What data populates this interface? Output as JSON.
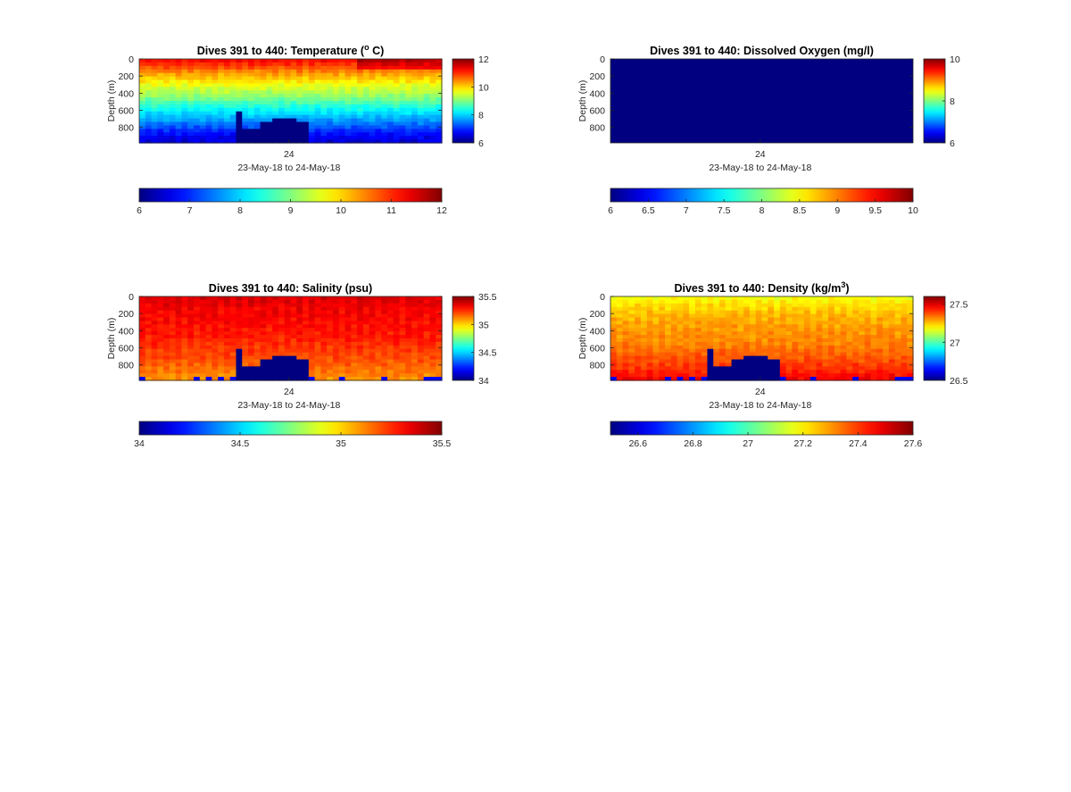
{
  "chart_data": [
    {
      "type": "heatmap",
      "title_prefix": "Dives 391 to 440: Temperature (",
      "title_sup": "o",
      "title_suffix": " C)",
      "ylabel": "Depth (m)",
      "xlabel": "23-May-18 to 24-May-18",
      "x_ticks": [
        "24"
      ],
      "y_ticks": [
        0,
        200,
        400,
        600,
        800
      ],
      "ylim": [
        0,
        980
      ],
      "y_reversed": true,
      "clim": [
        6,
        12
      ],
      "side_colorbar_ticks": [
        6,
        8,
        10,
        12
      ],
      "horizontal_colorbar_ticks": [
        6,
        7,
        8,
        9,
        10,
        11,
        12
      ],
      "colormap": "jet",
      "dives": 50,
      "profile": [
        11.2,
        10.8,
        10.3,
        9.9,
        9.5,
        9.2,
        8.8,
        8.4,
        8.0,
        7.6,
        7.2,
        6.8,
        6.5
      ],
      "surface_warm_fraction": 0.7,
      "missing_fill": 6,
      "bottom_gaps": [
        {
          "dive": 16,
          "top_depth": 600
        },
        {
          "dive": 17,
          "top_depth": 820
        },
        {
          "dive": 18,
          "top_depth": 820
        },
        {
          "dive": 19,
          "top_depth": 800
        },
        {
          "dive": 20,
          "top_depth": 720
        },
        {
          "dive": 21,
          "top_depth": 720
        },
        {
          "dive": 22,
          "top_depth": 680
        },
        {
          "dive": 23,
          "top_depth": 680
        },
        {
          "dive": 24,
          "top_depth": 700
        },
        {
          "dive": 25,
          "top_depth": 700
        },
        {
          "dive": 26,
          "top_depth": 720
        },
        {
          "dive": 27,
          "top_depth": 740
        }
      ]
    },
    {
      "type": "heatmap",
      "title_prefix": "Dives 391 to 440: Dissolved Oxygen (mg/l)",
      "title_sup": "",
      "title_suffix": "",
      "ylabel": "Depth (m)",
      "xlabel": "23-May-18 to 24-May-18",
      "x_ticks": [
        "24"
      ],
      "y_ticks": [
        0,
        200,
        400,
        600,
        800
      ],
      "ylim": [
        0,
        980
      ],
      "y_reversed": true,
      "clim": [
        6,
        10
      ],
      "side_colorbar_ticks": [
        6,
        8,
        10
      ],
      "horizontal_colorbar_ticks": [
        6,
        6.5,
        7,
        7.5,
        8,
        8.5,
        9,
        9.5,
        10
      ],
      "colormap": "jet",
      "uniform_value": 6
    },
    {
      "type": "heatmap",
      "title_prefix": "Dives 391 to 440: Salinity (psu)",
      "title_sup": "",
      "title_suffix": "",
      "ylabel": "Depth (m)",
      "xlabel": "23-May-18 to 24-May-18",
      "x_ticks": [
        "24"
      ],
      "y_ticks": [
        0,
        200,
        400,
        600,
        800
      ],
      "ylim": [
        0,
        980
      ],
      "y_reversed": true,
      "clim": [
        34,
        35.5
      ],
      "side_colorbar_ticks": [
        34,
        34.5,
        35,
        35.5
      ],
      "horizontal_colorbar_ticks": [
        34,
        34.5,
        35,
        35.5
      ],
      "colormap": "jet",
      "dives": 50,
      "profile": [
        35.36,
        35.34,
        35.32,
        35.31,
        35.3,
        35.28,
        35.27,
        35.25,
        35.22,
        35.2,
        35.17,
        35.14,
        35.1
      ],
      "missing_fill": 34,
      "bottom_gaps": [
        {
          "dive": 16,
          "top_depth": 600
        },
        {
          "dive": 17,
          "top_depth": 820
        },
        {
          "dive": 18,
          "top_depth": 820
        },
        {
          "dive": 19,
          "top_depth": 800
        },
        {
          "dive": 20,
          "top_depth": 720
        },
        {
          "dive": 21,
          "top_depth": 720
        },
        {
          "dive": 22,
          "top_depth": 680
        },
        {
          "dive": 23,
          "top_depth": 680
        },
        {
          "dive": 24,
          "top_depth": 700
        },
        {
          "dive": 25,
          "top_depth": 700
        },
        {
          "dive": 26,
          "top_depth": 720
        },
        {
          "dive": 27,
          "top_depth": 740
        }
      ]
    },
    {
      "type": "heatmap",
      "title_prefix": "Dives 391 to 440: Density (kg/m",
      "title_sup": "3",
      "title_suffix": ")",
      "ylabel": "Depth (m)",
      "xlabel": "23-May-18 to 24-May-18",
      "x_ticks": [
        "24"
      ],
      "y_ticks": [
        0,
        200,
        400,
        600,
        800
      ],
      "ylim": [
        0,
        980
      ],
      "y_reversed": true,
      "clim": [
        26.5,
        27.6
      ],
      "side_colorbar_ticks": [
        26.5,
        27,
        27.5
      ],
      "horizontal_colorbar_ticks": [
        26.6,
        26.8,
        27,
        27.2,
        27.4,
        27.6
      ],
      "colormap": "jet",
      "dives": 50,
      "profile": [
        27.18,
        27.22,
        27.25,
        27.27,
        27.29,
        27.3,
        27.31,
        27.33,
        27.35,
        27.37,
        27.4,
        27.43,
        27.47
      ],
      "missing_fill": 26.5,
      "bottom_gaps": [
        {
          "dive": 16,
          "top_depth": 600
        },
        {
          "dive": 17,
          "top_depth": 820
        },
        {
          "dive": 18,
          "top_depth": 820
        },
        {
          "dive": 19,
          "top_depth": 800
        },
        {
          "dive": 20,
          "top_depth": 720
        },
        {
          "dive": 21,
          "top_depth": 720
        },
        {
          "dive": 22,
          "top_depth": 680
        },
        {
          "dive": 23,
          "top_depth": 680
        },
        {
          "dive": 24,
          "top_depth": 700
        },
        {
          "dive": 25,
          "top_depth": 700
        },
        {
          "dive": 26,
          "top_depth": 720
        },
        {
          "dive": 27,
          "top_depth": 740
        }
      ]
    }
  ]
}
